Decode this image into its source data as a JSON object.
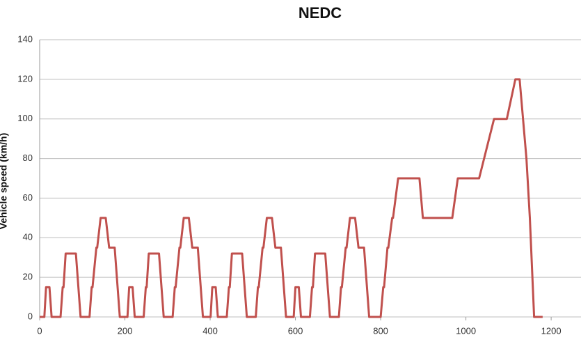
{
  "chart_data": {
    "type": "line",
    "title": "NEDC",
    "y_label": "Vehicle speed (km/h)",
    "xlim": [
      0,
      1270
    ],
    "xticks": [
      0,
      200,
      400,
      600,
      800,
      1000,
      1200
    ],
    "ylim": [
      0,
      140
    ],
    "yticks": [
      0,
      20,
      40,
      60,
      80,
      100,
      120,
      140
    ],
    "grid": true,
    "series": [
      {
        "color": "#c0504d",
        "x": [
          0,
          11,
          15,
          23,
          28,
          49,
          54,
          56,
          61,
          85,
          96,
          117,
          122,
          124,
          133,
          135,
          143,
          155,
          163,
          176,
          188,
          206,
          210,
          218,
          223,
          244,
          249,
          251,
          256,
          280,
          291,
          312,
          317,
          319,
          328,
          330,
          338,
          350,
          358,
          371,
          383,
          401,
          405,
          413,
          418,
          439,
          444,
          446,
          451,
          475,
          486,
          507,
          512,
          514,
          523,
          525,
          533,
          545,
          553,
          566,
          578,
          596,
          600,
          608,
          613,
          634,
          639,
          641,
          646,
          670,
          681,
          702,
          707,
          709,
          718,
          720,
          728,
          740,
          748,
          761,
          773,
          800,
          806,
          808,
          816,
          818,
          827,
          829,
          841,
          891,
          899,
          968,
          981,
          1031,
          1066,
          1096,
          1116,
          1126,
          1142,
          1150,
          1160,
          1180
        ],
        "values": [
          0,
          0,
          15,
          15,
          0,
          0,
          15,
          15,
          32,
          32,
          0,
          0,
          15,
          15,
          35,
          35,
          50,
          50,
          35,
          35,
          0,
          0,
          15,
          15,
          0,
          0,
          15,
          15,
          32,
          32,
          0,
          0,
          15,
          15,
          35,
          35,
          50,
          50,
          35,
          35,
          0,
          0,
          15,
          15,
          0,
          0,
          15,
          15,
          32,
          32,
          0,
          0,
          15,
          15,
          35,
          35,
          50,
          50,
          35,
          35,
          0,
          0,
          15,
          15,
          0,
          0,
          15,
          15,
          32,
          32,
          0,
          0,
          15,
          15,
          35,
          35,
          50,
          50,
          35,
          35,
          0,
          0,
          15,
          15,
          35,
          35,
          50,
          50,
          70,
          70,
          50,
          50,
          70,
          70,
          100,
          100,
          120,
          120,
          80,
          50,
          0,
          0
        ]
      }
    ]
  }
}
